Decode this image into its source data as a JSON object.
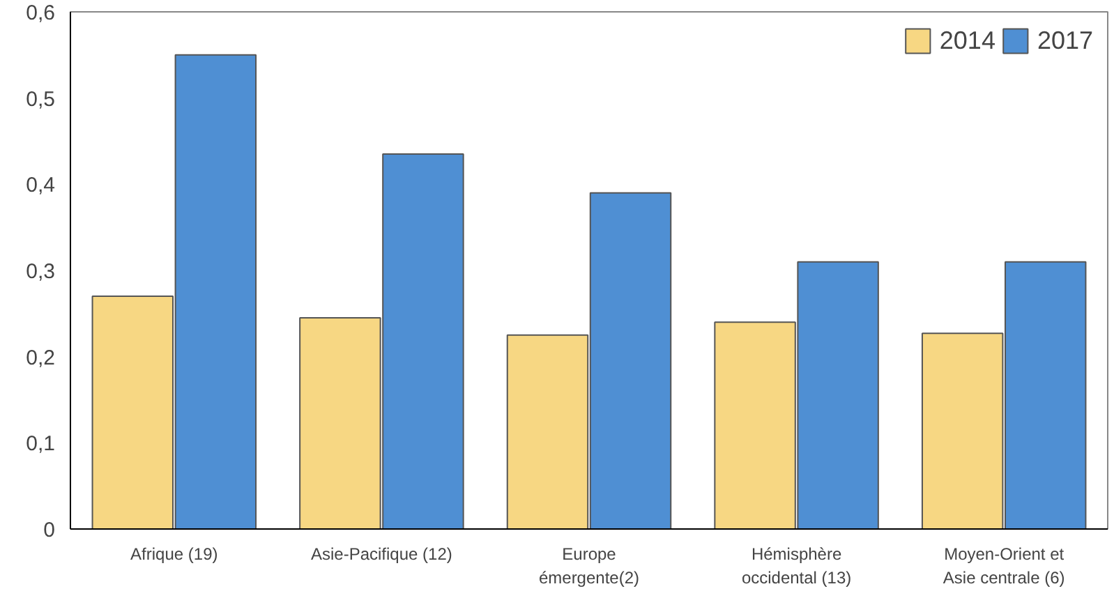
{
  "chart_data": {
    "type": "bar",
    "categories": [
      "Afrique (19)",
      "Asie-Pacifique (12)",
      "Europe\némergente(2)",
      "Hémisphère\noccidental (13)",
      "Moyen-Orient et\nAsie centrale (6)"
    ],
    "series": [
      {
        "name": "2014",
        "color": "#f7d783",
        "values": [
          0.27,
          0.245,
          0.225,
          0.24,
          0.227
        ]
      },
      {
        "name": "2017",
        "color": "#4f8fd3",
        "values": [
          0.55,
          0.435,
          0.39,
          0.31,
          0.31
        ]
      }
    ],
    "ylim": [
      0,
      0.6
    ],
    "yticks": [
      {
        "value": 0,
        "label": "0"
      },
      {
        "value": 0.1,
        "label": "0,1"
      },
      {
        "value": 0.2,
        "label": "0,2"
      },
      {
        "value": 0.3,
        "label": "0,3"
      },
      {
        "value": 0.4,
        "label": "0,4"
      },
      {
        "value": 0.5,
        "label": "0,5"
      },
      {
        "value": 0.6,
        "label": "0,6"
      }
    ],
    "grid": false,
    "legend": "top right"
  }
}
